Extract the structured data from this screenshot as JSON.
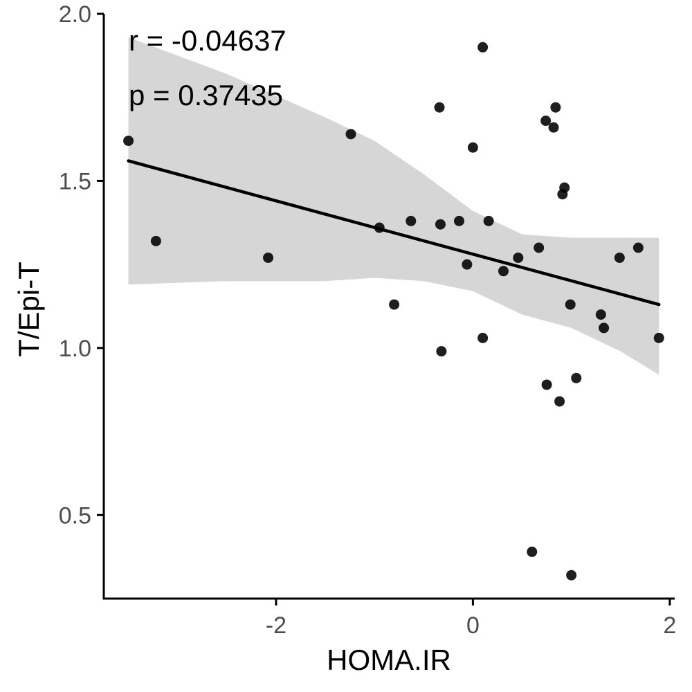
{
  "chart_data": {
    "type": "scatter",
    "title": "",
    "xlabel": "HOMA.IR",
    "ylabel": "T/Epi-T",
    "xlim": [
      -3.75,
      2.05
    ],
    "ylim": [
      0.25,
      2.0
    ],
    "x_ticks": [
      -2,
      0,
      2
    ],
    "y_ticks": [
      0.5,
      1.0,
      1.5,
      2.0
    ],
    "x_tick_labels": [
      "-2",
      "0",
      "2"
    ],
    "y_tick_labels": [
      "0.5",
      "1.0",
      "1.5",
      "2.0"
    ],
    "grid": false,
    "legend": "none",
    "annotations": [
      "r = -0.04637",
      "p = 0.37435"
    ],
    "points": {
      "x": [
        -3.5,
        -3.22,
        -2.08,
        -1.24,
        -0.95,
        -0.8,
        -0.63,
        -0.34,
        -0.33,
        -0.32,
        -0.14,
        -0.06,
        0.0,
        0.1,
        0.1,
        0.16,
        0.31,
        0.46,
        0.6,
        0.67,
        0.74,
        0.75,
        0.82,
        0.84,
        0.88,
        0.91,
        0.93,
        0.99,
        1.0,
        1.05,
        1.3,
        1.33,
        1.49,
        1.68,
        1.89
      ],
      "y": [
        1.62,
        1.32,
        1.27,
        1.64,
        1.36,
        1.13,
        1.38,
        1.72,
        1.37,
        0.99,
        1.38,
        1.25,
        1.6,
        1.9,
        1.03,
        1.38,
        1.23,
        1.27,
        0.39,
        1.3,
        1.68,
        0.89,
        1.66,
        1.72,
        0.84,
        1.46,
        1.48,
        1.13,
        0.32,
        0.91,
        1.1,
        1.06,
        1.27,
        1.3,
        1.03
      ]
    },
    "fit_line": {
      "x": [
        -3.5,
        1.89
      ],
      "y": [
        1.56,
        1.13
      ]
    },
    "confidence_band": {
      "x": [
        -3.5,
        -2.5,
        -1.5,
        -1.0,
        -0.5,
        0.0,
        0.5,
        1.0,
        1.5,
        1.89
      ],
      "upper": [
        1.93,
        1.82,
        1.69,
        1.62,
        1.52,
        1.41,
        1.34,
        1.33,
        1.33,
        1.33
      ],
      "lower": [
        1.19,
        1.2,
        1.2,
        1.21,
        1.2,
        1.17,
        1.1,
        1.06,
        0.99,
        0.92
      ]
    },
    "colors": {
      "points": "#000000",
      "fit_line": "#000000",
      "band": "#d6d6d6",
      "axis": "#000000",
      "tick_labels": "#4d4d4d"
    }
  }
}
